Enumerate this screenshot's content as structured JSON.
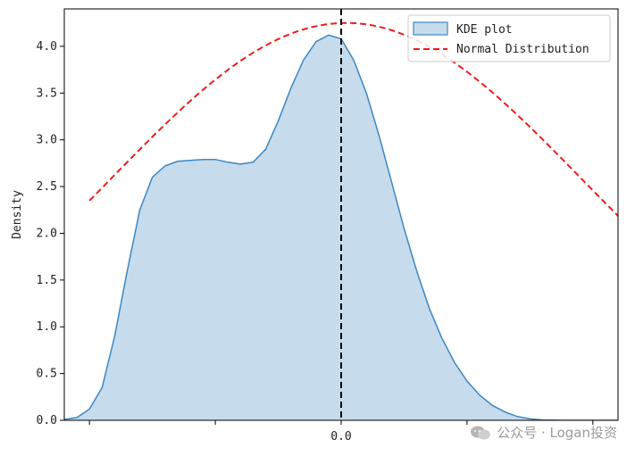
{
  "chart_data": {
    "type": "area",
    "title": "",
    "xlabel": "",
    "ylabel": "Density",
    "xlim": [
      -0.11,
      0.11
    ],
    "ylim": [
      0,
      4.4
    ],
    "x_ticks": [
      -0.1,
      -0.05,
      0.0,
      0.05,
      0.1
    ],
    "x_tick_labels": [
      "",
      "",
      "0.0",
      "",
      ""
    ],
    "y_ticks": [
      0.0,
      0.5,
      1.0,
      1.5,
      2.0,
      2.5,
      3.0,
      3.5,
      4.0
    ],
    "y_tick_labels": [
      "0.0",
      "0.5",
      "1.0",
      "1.5",
      "2.0",
      "2.5",
      "3.0",
      "3.5",
      "4.0"
    ],
    "vline_x": 0.0,
    "legend_position": "top-right",
    "grid": false,
    "series": [
      {
        "name": "KDE plot",
        "style": "filled-line",
        "color": "#3d87c0",
        "fill_color": "#c6dcec",
        "x": [
          -0.13,
          -0.12,
          -0.11,
          -0.105,
          -0.1,
          -0.095,
          -0.09,
          -0.085,
          -0.08,
          -0.075,
          -0.07,
          -0.065,
          -0.06,
          -0.055,
          -0.05,
          -0.045,
          -0.04,
          -0.035,
          -0.03,
          -0.025,
          -0.02,
          -0.015,
          -0.01,
          -0.005,
          0.0,
          0.005,
          0.01,
          0.015,
          0.02,
          0.025,
          0.03,
          0.035,
          0.04,
          0.045,
          0.05,
          0.055,
          0.06,
          0.065,
          0.07,
          0.075,
          0.08,
          0.085,
          0.09,
          0.095,
          0.1,
          0.105,
          0.11,
          0.12,
          0.13
        ],
        "y": [
          0.0,
          0.002,
          0.01,
          0.03,
          0.12,
          0.35,
          0.9,
          1.6,
          2.25,
          2.6,
          2.72,
          2.77,
          2.78,
          2.79,
          2.79,
          2.76,
          2.74,
          2.76,
          2.9,
          3.2,
          3.55,
          3.85,
          4.05,
          4.12,
          4.08,
          3.85,
          3.5,
          3.05,
          2.55,
          2.05,
          1.6,
          1.2,
          0.88,
          0.62,
          0.42,
          0.27,
          0.16,
          0.09,
          0.04,
          0.015,
          0.004,
          0.001,
          0.0,
          0.0,
          0.0,
          0.0,
          0.0,
          0.0,
          0.0
        ]
      },
      {
        "name": "Normal Distribution",
        "style": "dashed-line",
        "color": "#ee1c1c",
        "mean": 0.002,
        "std": 0.0937,
        "peak": 4.25,
        "x_range": [
          -0.1,
          0.13
        ]
      }
    ]
  },
  "watermark": {
    "text": "公众号 · Logan投资"
  }
}
